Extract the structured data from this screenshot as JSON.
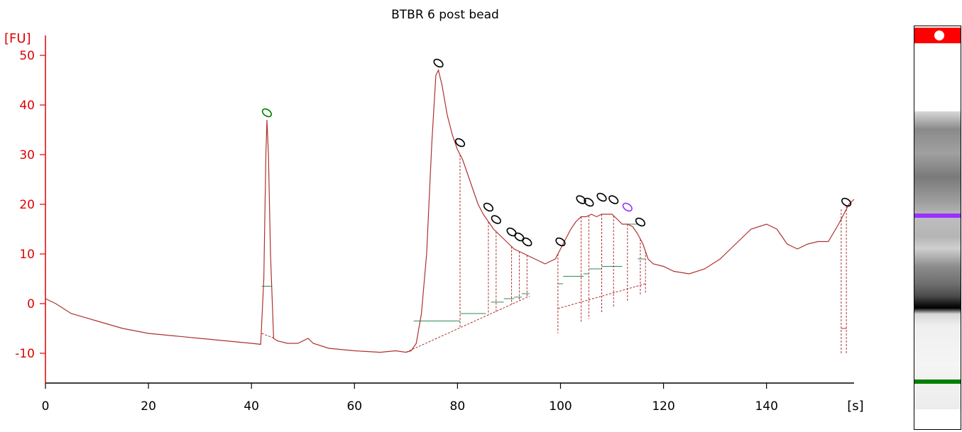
{
  "chart_data": {
    "type": "line",
    "title": "BTBR 6 post bead",
    "ylabel": "[FU]",
    "xlabel": "[s]",
    "xlim": [
      0,
      157
    ],
    "ylim": [
      -16,
      54
    ],
    "xticks": [
      0,
      20,
      40,
      60,
      80,
      100,
      120,
      140
    ],
    "yticks": [
      -10,
      0,
      10,
      20,
      30,
      40,
      50
    ],
    "grid": false,
    "colors": {
      "axis": "#e00000",
      "trace": "#b03030",
      "peak_marker": "#000000",
      "lower_marker": "#008000",
      "upper_marker": "#9b30ff",
      "baseline": "#2e8b57"
    },
    "series": [
      {
        "points": [
          [
            0,
            1
          ],
          [
            2,
            0
          ],
          [
            5,
            -2
          ],
          [
            10,
            -3.5
          ],
          [
            15,
            -5
          ],
          [
            20,
            -6
          ],
          [
            25,
            -6.5
          ],
          [
            30,
            -7
          ],
          [
            35,
            -7.5
          ],
          [
            40,
            -8
          ],
          [
            41.8,
            -8.2
          ],
          [
            42.4,
            5
          ],
          [
            42.8,
            30
          ],
          [
            43.0,
            37
          ],
          [
            43.3,
            30
          ],
          [
            43.7,
            10
          ],
          [
            44.3,
            -7
          ],
          [
            45,
            -7.5
          ],
          [
            47,
            -8
          ],
          [
            49,
            -8
          ],
          [
            51,
            -7
          ],
          [
            52,
            -8
          ],
          [
            55,
            -9
          ],
          [
            60,
            -9.5
          ],
          [
            65,
            -9.8
          ],
          [
            68,
            -9.5
          ],
          [
            70,
            -9.8
          ],
          [
            71,
            -9.5
          ],
          [
            72,
            -8
          ],
          [
            73,
            -2
          ],
          [
            74,
            10
          ],
          [
            75,
            32
          ],
          [
            75.8,
            46
          ],
          [
            76.3,
            47
          ],
          [
            77,
            44
          ],
          [
            78,
            38
          ],
          [
            79,
            34
          ],
          [
            80,
            31
          ],
          [
            81,
            29
          ],
          [
            82,
            26
          ],
          [
            83,
            23
          ],
          [
            84,
            20
          ],
          [
            85,
            18
          ],
          [
            86,
            16.5
          ],
          [
            87,
            15
          ],
          [
            88,
            14
          ],
          [
            89,
            13
          ],
          [
            90,
            12
          ],
          [
            91,
            11
          ],
          [
            92,
            10.5
          ],
          [
            93,
            10
          ],
          [
            94,
            9.5
          ],
          [
            95,
            9
          ],
          [
            96,
            8.5
          ],
          [
            97,
            8
          ],
          [
            98,
            8.5
          ],
          [
            99,
            9
          ],
          [
            100,
            11
          ],
          [
            101,
            13
          ],
          [
            102,
            15
          ],
          [
            103,
            16.5
          ],
          [
            104,
            17.5
          ],
          [
            105,
            17.5
          ],
          [
            106,
            18
          ],
          [
            107,
            17.5
          ],
          [
            108,
            18
          ],
          [
            109,
            18
          ],
          [
            110,
            18
          ],
          [
            111,
            17
          ],
          [
            112,
            16
          ],
          [
            113,
            16
          ],
          [
            114,
            15.5
          ],
          [
            115,
            14
          ],
          [
            116,
            12
          ],
          [
            117,
            9
          ],
          [
            118,
            8
          ],
          [
            120,
            7.5
          ],
          [
            122,
            6.5
          ],
          [
            125,
            6
          ],
          [
            128,
            7
          ],
          [
            131,
            9
          ],
          [
            134,
            12
          ],
          [
            137,
            15
          ],
          [
            140,
            16
          ],
          [
            142,
            15
          ],
          [
            144,
            12
          ],
          [
            146,
            11
          ],
          [
            148,
            12
          ],
          [
            150,
            12.5
          ],
          [
            152,
            12.5
          ],
          [
            154,
            16
          ],
          [
            155,
            18
          ],
          [
            156,
            20
          ],
          [
            157,
            21
          ]
        ]
      }
    ],
    "peaks": [
      {
        "x": 43.0,
        "y": 37,
        "marker": "lower"
      },
      {
        "x": 76.3,
        "y": 47,
        "marker": "peak"
      },
      {
        "x": 80.5,
        "y": 31,
        "marker": "peak"
      },
      {
        "x": 86,
        "y": 18,
        "marker": "peak"
      },
      {
        "x": 87.5,
        "y": 15.5,
        "marker": "peak"
      },
      {
        "x": 90.5,
        "y": 13,
        "marker": "peak"
      },
      {
        "x": 92,
        "y": 12,
        "marker": "peak"
      },
      {
        "x": 93.5,
        "y": 11,
        "marker": "peak"
      },
      {
        "x": 100,
        "y": 11,
        "marker": "peak"
      },
      {
        "x": 104,
        "y": 19.5,
        "marker": "peak"
      },
      {
        "x": 105.5,
        "y": 19,
        "marker": "peak"
      },
      {
        "x": 108,
        "y": 20,
        "marker": "peak"
      },
      {
        "x": 110.3,
        "y": 19.5,
        "marker": "peak"
      },
      {
        "x": 113,
        "y": 18,
        "marker": "upper"
      },
      {
        "x": 115.5,
        "y": 15,
        "marker": "peak"
      },
      {
        "x": 155.5,
        "y": 19,
        "marker": "peak"
      }
    ],
    "gel_markers": [
      {
        "position": "upper",
        "color": "#9b30ff"
      },
      {
        "position": "lower",
        "color": "#008000"
      }
    ]
  }
}
